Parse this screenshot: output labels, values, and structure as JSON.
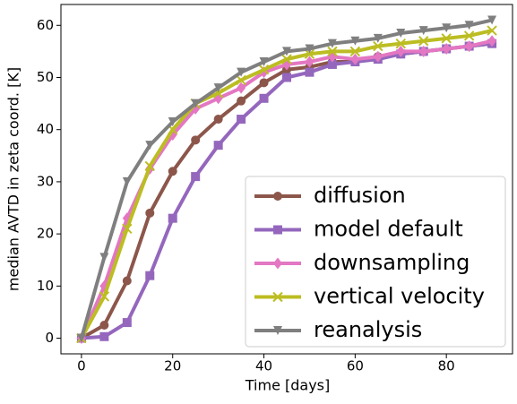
{
  "chart_data": {
    "type": "line",
    "x_label": "Time [days]",
    "y_label": "median AVTD in zeta coord. [K]",
    "x": [
      0,
      5,
      10,
      15,
      20,
      25,
      30,
      35,
      40,
      45,
      50,
      55,
      60,
      65,
      70,
      75,
      80,
      85,
      90
    ],
    "series": [
      {
        "name": "diffusion",
        "color": "#8c564b",
        "marker": "circle",
        "values": [
          0,
          2.5,
          11,
          24,
          32,
          38,
          42,
          45.5,
          49,
          51.5,
          52,
          53,
          53,
          54,
          54.5,
          55,
          55.5,
          56,
          56.5
        ]
      },
      {
        "name": "model default",
        "color": "#9467bd",
        "marker": "square",
        "values": [
          0,
          0.3,
          3,
          12,
          23,
          31,
          37,
          42,
          46,
          50,
          51,
          52.5,
          53,
          53.5,
          54.5,
          55,
          55.5,
          56,
          56.5
        ]
      },
      {
        "name": "downsampling",
        "color": "#e377c2",
        "marker": "diamond",
        "values": [
          0,
          10,
          23,
          32.5,
          39,
          44,
          46,
          48,
          51,
          52.5,
          53,
          54,
          53.5,
          54,
          55,
          55,
          55.5,
          56,
          57
        ]
      },
      {
        "name": "vertical velocity",
        "color": "#bcbd22",
        "marker": "x",
        "values": [
          0,
          8,
          21,
          33,
          40,
          45,
          47,
          49.5,
          51.5,
          53.5,
          54.5,
          55,
          55,
          56,
          56.5,
          57,
          57.5,
          58,
          59
        ]
      },
      {
        "name": "reanalysis",
        "color": "#7f7f7f",
        "marker": "triangle-down",
        "values": [
          0,
          15.5,
          30,
          37,
          41.5,
          45,
          48,
          51,
          53,
          55,
          55.5,
          56.5,
          57,
          57.5,
          58.5,
          59,
          59.5,
          60,
          61
        ]
      }
    ],
    "xlim": [
      -4.5,
      94.5
    ],
    "ylim": [
      -3,
      64
    ],
    "xticks": [
      0,
      20,
      40,
      60,
      80
    ],
    "yticks": [
      0,
      10,
      20,
      30,
      40,
      50,
      60
    ],
    "legend": "lower right"
  }
}
